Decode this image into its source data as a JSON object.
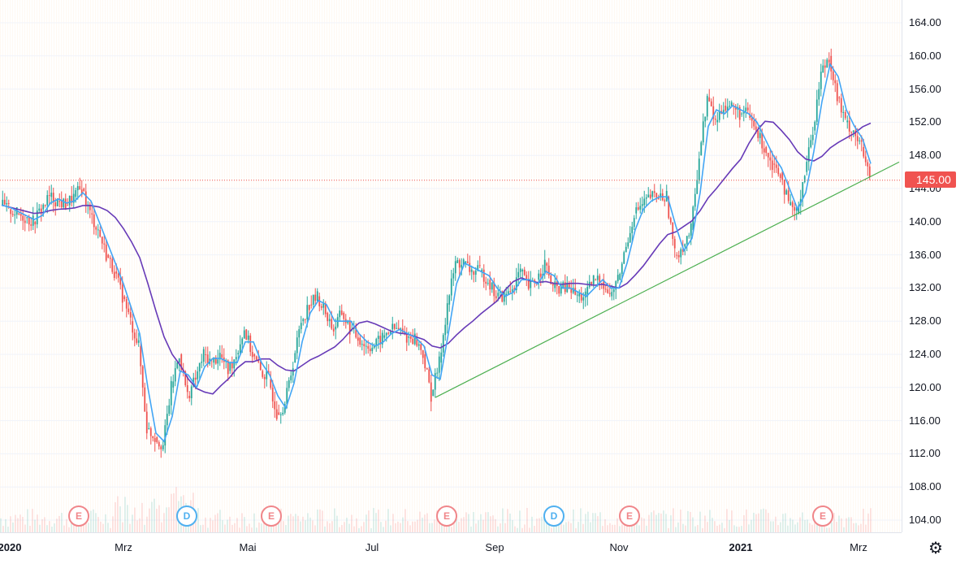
{
  "chart_data": {
    "type": "candlestick",
    "title": "",
    "period_note": "weekly sampled approximate closes, Jan 2020 - Mar 2021",
    "closes": [
      142,
      141.5,
      141,
      140.5,
      140,
      141.5,
      143,
      142.5,
      142,
      143,
      144,
      141,
      139,
      136,
      134,
      131,
      128,
      125,
      115,
      114,
      113,
      120,
      124,
      119,
      121,
      124,
      123,
      124,
      122,
      124,
      127,
      124,
      122,
      121,
      117,
      118,
      123,
      128,
      130,
      131,
      129,
      127,
      129,
      127,
      126,
      125,
      125,
      126,
      127,
      127,
      126,
      126,
      124,
      119,
      123,
      130,
      135,
      135,
      134,
      134,
      133,
      131,
      131,
      132,
      134,
      132,
      133,
      135,
      132,
      132,
      132,
      131,
      131,
      133,
      133,
      131,
      133,
      137,
      141,
      142,
      143,
      143,
      143,
      136,
      137,
      139,
      148,
      155,
      152,
      154,
      154,
      153,
      153,
      151,
      149,
      147,
      146,
      142,
      141,
      146,
      151,
      158,
      160,
      155,
      152,
      151,
      149,
      145
    ],
    "ylim": [
      102,
      166
    ],
    "y_ticks": [
      "164.00",
      "160.00",
      "156.00",
      "152.00",
      "148.00",
      "144.00",
      "140.00",
      "136.00",
      "132.00",
      "128.00",
      "124.00",
      "120.00",
      "116.00",
      "112.00",
      "108.00",
      "104.00"
    ],
    "x_ticks": [
      {
        "label": "2020",
        "bold": true
      },
      {
        "label": "Mrz"
      },
      {
        "label": "Mai"
      },
      {
        "label": "Jul"
      },
      {
        "label": "Sep"
      },
      {
        "label": "Nov"
      },
      {
        "label": "2021",
        "bold": true
      },
      {
        "label": "Mrz"
      }
    ],
    "last_price": "145.00",
    "trendline": {
      "from": {
        "index": 53.4,
        "value": 118.8
      },
      "to": {
        "index": 110.5,
        "value": 147.2
      },
      "color": "#4caf50"
    },
    "ma_fast": {
      "window": 2,
      "color": "#42a5f5"
    },
    "ma_slow": {
      "window": 9,
      "color": "#673ab7"
    },
    "up_color": "#26a69a",
    "down_color": "#ef5350",
    "events": [
      {
        "label": "E",
        "index": 9.5
      },
      {
        "label": "D",
        "index": 22.8
      },
      {
        "label": "E",
        "index": 33.2
      },
      {
        "label": "E",
        "index": 54.8
      },
      {
        "label": "D",
        "index": 68
      },
      {
        "label": "E",
        "index": 77.3
      },
      {
        "label": "E",
        "index": 101.1
      }
    ]
  }
}
